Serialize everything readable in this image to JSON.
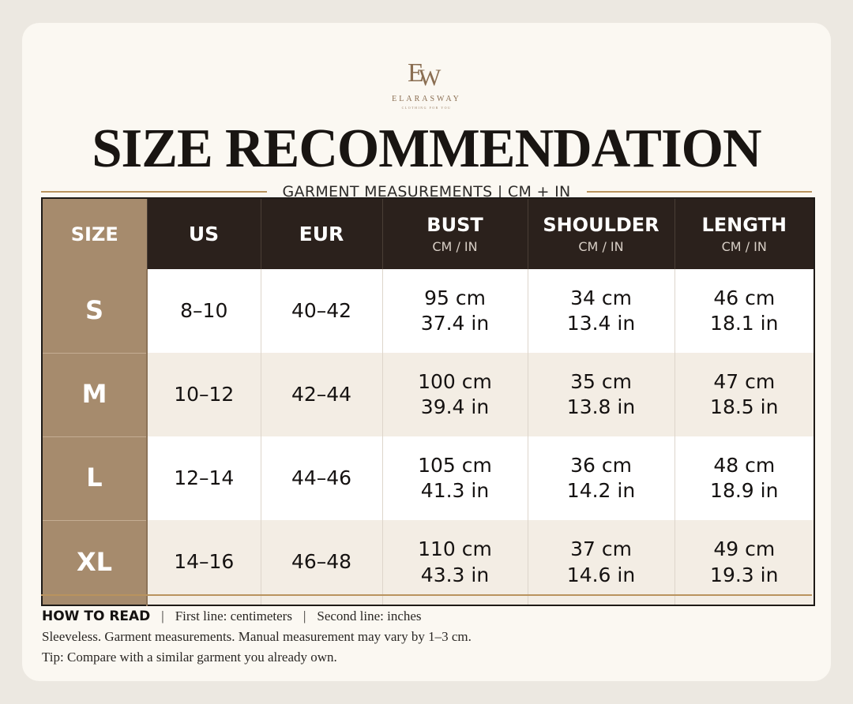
{
  "brand": {
    "monogram": [
      "E",
      "W"
    ],
    "name": "ELARASWAY",
    "tagline": "CLOTHING FOR YOU"
  },
  "title": "SIZE RECOMMENDATION",
  "subtitle": "GARMENT MEASUREMENTS | CM + IN",
  "table": {
    "headers": {
      "size": "SIZE",
      "us": "US",
      "eur": "EUR",
      "bust": "BUST",
      "bust_unit": "CM / IN",
      "shoulder": "SHOULDER",
      "shoulder_unit": "CM / IN",
      "length": "LENGTH",
      "length_unit": "CM / IN"
    },
    "rows": [
      {
        "size": "S",
        "us": "8–10",
        "eur": "40–42",
        "bust_cm": "95 cm",
        "bust_in": "37.4 in",
        "shoulder_cm": "34 cm",
        "shoulder_in": "13.4 in",
        "length_cm": "46 cm",
        "length_in": "18.1 in"
      },
      {
        "size": "M",
        "us": "10–12",
        "eur": "42–44",
        "bust_cm": "100 cm",
        "bust_in": "39.4 in",
        "shoulder_cm": "35 cm",
        "shoulder_in": "13.8 in",
        "length_cm": "47 cm",
        "length_in": "18.5 in"
      },
      {
        "size": "L",
        "us": "12–14",
        "eur": "44–46",
        "bust_cm": "105 cm",
        "bust_in": "41.3 in",
        "shoulder_cm": "36 cm",
        "shoulder_in": "14.2 in",
        "length_cm": "48 cm",
        "length_in": "18.9 in"
      },
      {
        "size": "XL",
        "us": "14–16",
        "eur": "46–48",
        "bust_cm": "110 cm",
        "bust_in": "43.3 in",
        "shoulder_cm": "37 cm",
        "shoulder_in": "14.6 in",
        "length_cm": "49 cm",
        "length_in": "19.3 in"
      }
    ]
  },
  "notes": {
    "how_to_read": "HOW TO READ",
    "separator": "|",
    "first_line": "First line: centimeters",
    "second_line": "Second line: inches",
    "disclaimer": "Sleeveless. Garment measurements. Manual measurement may vary by 1–3 cm.",
    "tip": "Tip: Compare with a similar garment you already own."
  },
  "colors": {
    "accent_tan": "#a68b6d",
    "header_dark": "#2b211c",
    "gold_rule": "#b9935e"
  }
}
